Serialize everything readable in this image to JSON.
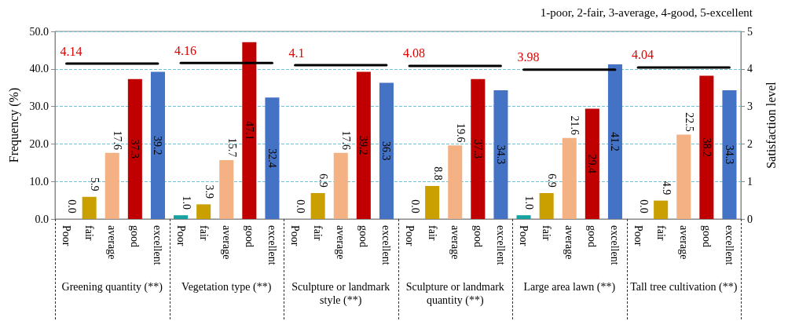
{
  "chart_data": {
    "type": "bar",
    "ylabel": "Frequency (%)",
    "y2label": "Satisfaction level",
    "categories": [
      "Poor",
      "fair",
      "average",
      "good",
      "excellent",
      "Poor",
      "fair",
      "average",
      "good",
      "excellent",
      "Poor",
      "fair",
      "average",
      "good",
      "excellent",
      "Poor",
      "fair",
      "average",
      "good",
      "excellent",
      "Poor",
      "fair",
      "average",
      "good",
      "excellent",
      "Poor",
      "fair",
      "average",
      "good",
      "excellent"
    ],
    "series": [
      {
        "values": [
          0.0,
          5.9,
          17.6,
          37.3,
          39.2,
          1.0,
          3.9,
          15.7,
          47.1,
          32.4,
          0.0,
          6.9,
          17.6,
          39.2,
          36.3,
          0.0,
          8.8,
          19.6,
          37.3,
          34.3,
          1.0,
          6.9,
          21.6,
          29.4,
          41.2,
          0.0,
          4.9,
          22.5,
          38.2,
          34.3
        ],
        "value_labels": [
          "0.0",
          "5.9",
          "17.6",
          "37.3",
          "39.2",
          "1.0",
          "3.9",
          "15.7",
          "47.1",
          "32.4",
          "0.0",
          "6.9",
          "17.6",
          "39.2",
          "36.3",
          "0.0",
          "8.8",
          "19.6",
          "37.3",
          "34.3",
          "1.0",
          "6.9",
          "21.6",
          "29.4",
          "41.2",
          "0.0",
          "4.9",
          "22.5",
          "38.2",
          "34.3"
        ],
        "colors": [
          "#17a2a2",
          "#c9a000",
          "#f4b183",
          "#c00000",
          "#4472c4",
          "#17a2a2",
          "#c9a000",
          "#f4b183",
          "#c00000",
          "#4472c4",
          "#17a2a2",
          "#c9a000",
          "#f4b183",
          "#c00000",
          "#4472c4",
          "#17a2a2",
          "#c9a000",
          "#f4b183",
          "#c00000",
          "#4472c4",
          "#17a2a2",
          "#c9a000",
          "#f4b183",
          "#c00000",
          "#4472c4",
          "#17a2a2",
          "#c9a000",
          "#f4b183",
          "#c00000",
          "#4472c4"
        ]
      },
      {
        "type": "line",
        "axis": "y2",
        "color": "#000000",
        "values": [
          4.14,
          4.14,
          4.14,
          4.14,
          4.14,
          null,
          null,
          null,
          null,
          null,
          null,
          null,
          null,
          null,
          null,
          null,
          null,
          null,
          null,
          null,
          null,
          null,
          null,
          null,
          null,
          null,
          null,
          null,
          null,
          null
        ],
        "value_labels": [
          "4.14",
          null,
          null,
          null,
          null,
          null,
          null,
          null,
          null,
          null,
          null,
          null,
          null,
          null,
          null,
          null,
          null,
          null,
          null,
          null,
          null,
          null,
          null,
          null,
          null,
          null,
          null,
          null,
          null,
          null
        ]
      },
      {
        "type": "line",
        "axis": "y2",
        "color": "#000000",
        "values": [
          null,
          null,
          null,
          null,
          null,
          4.16,
          4.16,
          4.16,
          4.16,
          4.16,
          null,
          null,
          null,
          null,
          null,
          null,
          null,
          null,
          null,
          null,
          null,
          null,
          null,
          null,
          null,
          null,
          null,
          null,
          null,
          null
        ],
        "value_labels": [
          null,
          null,
          null,
          null,
          null,
          "4.16",
          null,
          null,
          null,
          null,
          null,
          null,
          null,
          null,
          null,
          null,
          null,
          null,
          null,
          null,
          null,
          null,
          null,
          null,
          null,
          null,
          null,
          null,
          null,
          null
        ]
      },
      {
        "type": "line",
        "axis": "y2",
        "color": "#000000",
        "values": [
          null,
          null,
          null,
          null,
          null,
          null,
          null,
          null,
          null,
          null,
          4.1,
          4.1,
          4.1,
          4.1,
          4.1,
          null,
          null,
          null,
          null,
          null,
          null,
          null,
          null,
          null,
          null,
          null,
          null,
          null,
          null,
          null
        ],
        "value_labels": [
          null,
          null,
          null,
          null,
          null,
          null,
          null,
          null,
          null,
          null,
          "4.1",
          null,
          null,
          null,
          null,
          null,
          null,
          null,
          null,
          null,
          null,
          null,
          null,
          null,
          null,
          null,
          null,
          null,
          null,
          null
        ]
      },
      {
        "type": "line",
        "axis": "y2",
        "color": "#000000",
        "values": [
          null,
          null,
          null,
          null,
          null,
          null,
          null,
          null,
          null,
          null,
          null,
          null,
          null,
          null,
          null,
          4.08,
          4.08,
          4.08,
          4.08,
          4.08,
          null,
          null,
          null,
          null,
          null,
          null,
          null,
          null,
          null,
          null
        ],
        "value_labels": [
          null,
          null,
          null,
          null,
          null,
          null,
          null,
          null,
          null,
          null,
          null,
          null,
          null,
          null,
          null,
          "4.08",
          null,
          null,
          null,
          null,
          null,
          null,
          null,
          null,
          null,
          null,
          null,
          null,
          null,
          null
        ]
      },
      {
        "type": "line",
        "axis": "y2",
        "color": "#000000",
        "values": [
          null,
          null,
          null,
          null,
          null,
          null,
          null,
          null,
          null,
          null,
          null,
          null,
          null,
          null,
          null,
          null,
          null,
          null,
          null,
          null,
          3.98,
          3.98,
          3.98,
          3.98,
          3.98,
          null,
          null,
          null,
          null,
          null
        ],
        "value_labels": [
          null,
          null,
          null,
          null,
          null,
          null,
          null,
          null,
          null,
          null,
          null,
          null,
          null,
          null,
          null,
          null,
          null,
          null,
          null,
          null,
          "3.98",
          null,
          null,
          null,
          null,
          null,
          null,
          null,
          null,
          null
        ]
      },
      {
        "type": "line",
        "axis": "y2",
        "color": "#000000",
        "values": [
          null,
          null,
          null,
          null,
          null,
          null,
          null,
          null,
          null,
          null,
          null,
          null,
          null,
          null,
          null,
          null,
          null,
          null,
          null,
          null,
          null,
          null,
          null,
          null,
          null,
          4.04,
          4.04,
          4.04,
          4.04,
          4.04
        ],
        "value_labels": [
          null,
          null,
          null,
          null,
          null,
          null,
          null,
          null,
          null,
          null,
          null,
          null,
          null,
          null,
          null,
          null,
          null,
          null,
          null,
          null,
          null,
          null,
          null,
          null,
          null,
          "4.04",
          null,
          null,
          null,
          null
        ]
      }
    ],
    "ylim": [
      0,
      50
    ],
    "yticks": [
      {
        "value": 0,
        "label": "0.0"
      },
      {
        "value": 10,
        "label": "10.0"
      },
      {
        "value": 20,
        "label": "20.0"
      },
      {
        "value": 30,
        "label": "30.0"
      },
      {
        "value": 40,
        "label": "40.0"
      },
      {
        "value": 50,
        "label": "50.0"
      }
    ],
    "y2lim": [
      0,
      5
    ],
    "y2ticks": [
      0,
      1,
      2,
      3,
      4,
      5
    ],
    "grid": "y",
    "marker": "none",
    "annotations": [
      "1-poor, 2-fair, 3-average, 4-good, 5-excellent",
      "Greening quantity (**)",
      "Vegetation type (**)",
      "Sculpture or landmark style (**)",
      "Sculpture or landmark quantity (**)",
      "Large area lawn (**)",
      "Tall tree cultivation (**)"
    ]
  }
}
